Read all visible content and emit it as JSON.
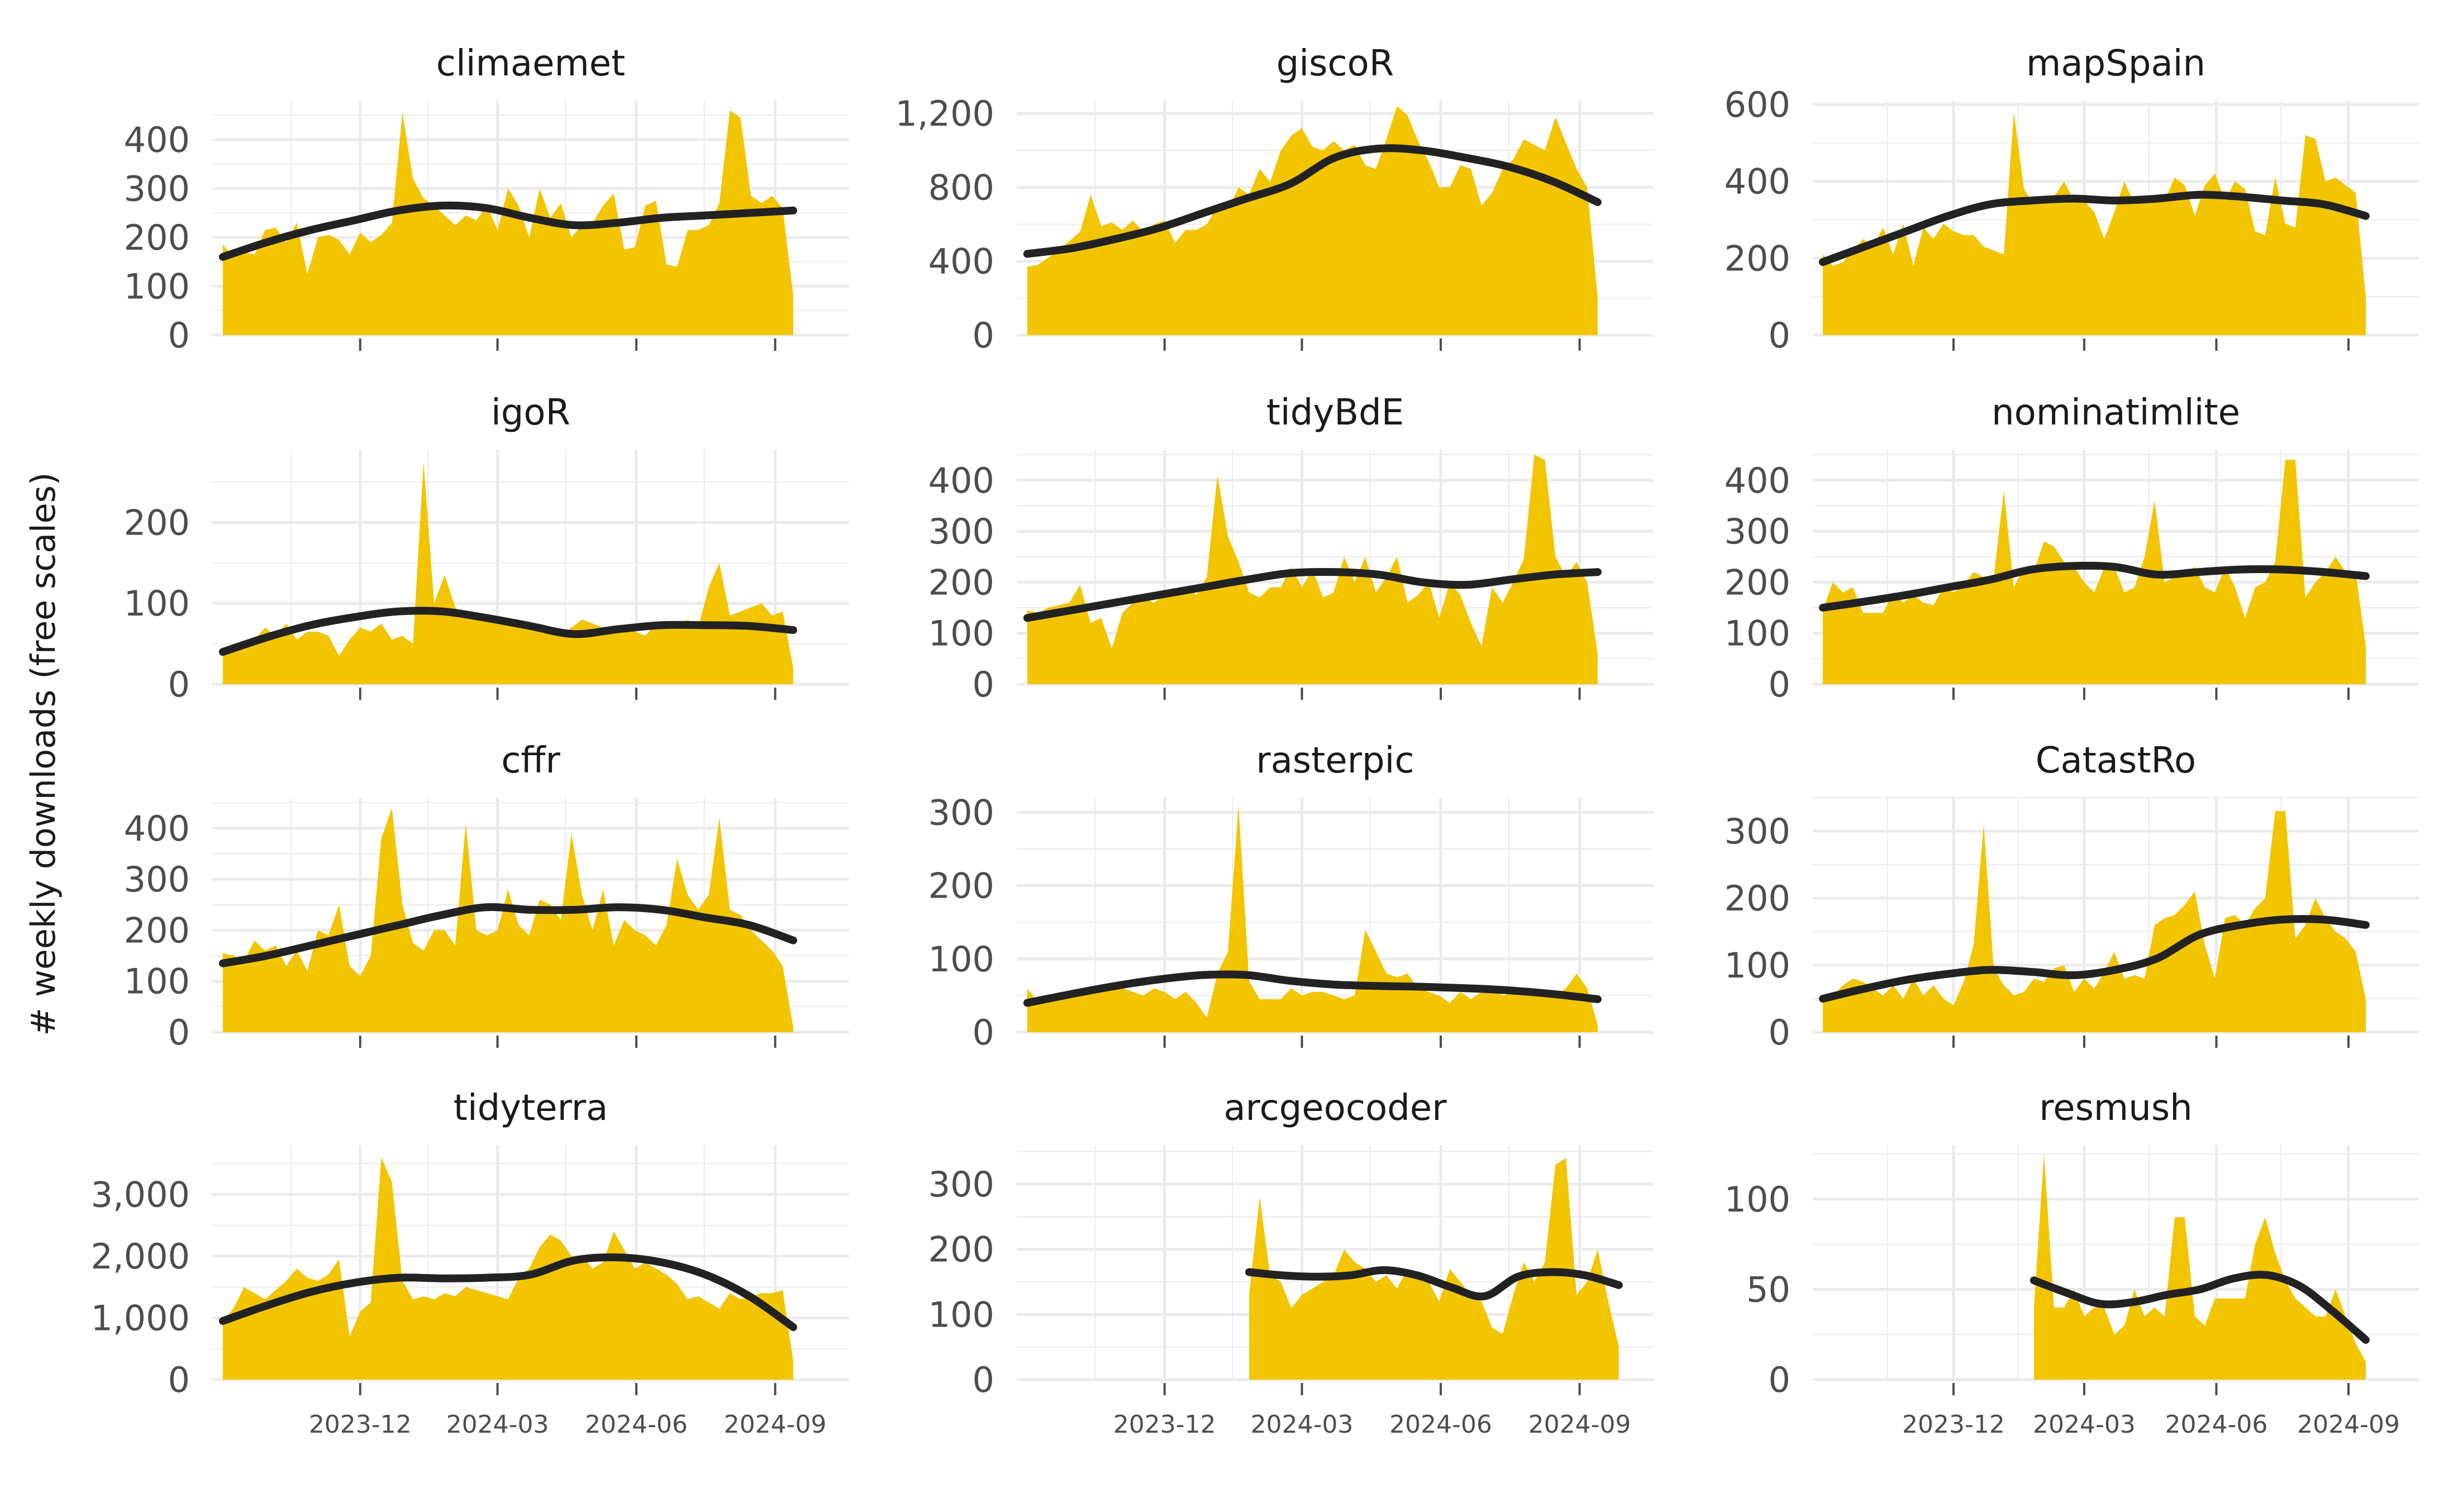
{
  "chart_data": {
    "type": "area",
    "ylabel": "# weekly downloads (free scales)",
    "xlabel": "",
    "x_tick_labels": [
      "2023-12",
      "2024-03",
      "2024-06",
      "2024-09"
    ],
    "x_tick_dates": [
      "2023-12-01",
      "2024-03-01",
      "2024-06-01",
      "2024-09-01"
    ],
    "x_range": [
      "2023-08-25",
      "2024-10-20"
    ],
    "grid": true,
    "legend": "none",
    "colors": {
      "area": "#F2C500",
      "trend": "#222222",
      "grid": "#EBEBEB",
      "tick_text": "#4D4D4D",
      "title_text": "#1A1A1A"
    },
    "panels": [
      {
        "title": "climaemet",
        "ylim": [
          0,
          480
        ],
        "yticks": [
          0,
          100,
          200,
          300,
          400
        ],
        "ytick_labels": [
          "0",
          "100",
          "200",
          "300",
          "400"
        ],
        "start": "2023-09-01",
        "values": [
          185,
          160,
          170,
          165,
          215,
          220,
          190,
          230,
          125,
          200,
          205,
          195,
          165,
          210,
          190,
          205,
          230,
          455,
          320,
          280,
          265,
          245,
          225,
          245,
          235,
          265,
          215,
          300,
          265,
          200,
          300,
          240,
          270,
          200,
          225,
          230,
          265,
          290,
          175,
          180,
          265,
          275,
          145,
          140,
          215,
          215,
          225,
          270,
          460,
          445,
          285,
          270,
          285,
          260,
          80
        ],
        "trend": [
          160,
          190,
          215,
          235,
          255,
          265,
          260,
          240,
          225,
          230,
          240,
          245,
          250,
          255
        ]
      },
      {
        "title": "giscoR",
        "ylim": [
          0,
          1270
        ],
        "yticks": [
          0,
          400,
          800,
          1200
        ],
        "ytick_labels": [
          "0",
          "400",
          "800",
          "1,200"
        ],
        "start": "2023-09-01",
        "values": [
          370,
          380,
          420,
          460,
          510,
          560,
          760,
          590,
          610,
          570,
          620,
          560,
          600,
          620,
          500,
          570,
          570,
          600,
          700,
          680,
          800,
          760,
          900,
          830,
          1000,
          1080,
          1120,
          1020,
          1000,
          1050,
          1000,
          1030,
          920,
          900,
          1060,
          1240,
          1190,
          1050,
          940,
          800,
          800,
          920,
          900,
          700,
          770,
          900,
          950,
          1060,
          1030,
          1000,
          1180,
          1040,
          900,
          800,
          200
        ],
        "trend": [
          440,
          470,
          520,
          580,
          660,
          740,
          820,
          960,
          1010,
          1000,
          960,
          910,
          830,
          720
        ]
      },
      {
        "title": "mapSpain",
        "ylim": [
          0,
          610
        ],
        "yticks": [
          0,
          200,
          400,
          600
        ],
        "ytick_labels": [
          "0",
          "200",
          "400",
          "600"
        ],
        "start": "2023-09-01",
        "values": [
          210,
          180,
          190,
          220,
          250,
          230,
          280,
          210,
          290,
          180,
          280,
          250,
          290,
          270,
          260,
          260,
          230,
          220,
          210,
          580,
          380,
          340,
          360,
          360,
          400,
          350,
          350,
          320,
          250,
          320,
          400,
          340,
          350,
          350,
          350,
          410,
          390,
          310,
          390,
          420,
          350,
          400,
          380,
          270,
          260,
          410,
          290,
          280,
          520,
          510,
          400,
          410,
          390,
          370,
          100
        ],
        "trend": [
          190,
          230,
          270,
          310,
          340,
          350,
          355,
          350,
          355,
          365,
          360,
          350,
          340,
          310
        ]
      },
      {
        "title": "igoR",
        "ylim": [
          0,
          290
        ],
        "yticks": [
          0,
          100,
          200
        ],
        "ytick_labels": [
          "0",
          "100",
          "200"
        ],
        "start": "2023-09-01",
        "values": [
          45,
          40,
          50,
          55,
          70,
          60,
          75,
          55,
          65,
          65,
          60,
          35,
          55,
          70,
          65,
          75,
          55,
          60,
          50,
          275,
          100,
          135,
          95,
          85,
          80,
          80,
          75,
          75,
          80,
          70,
          75,
          70,
          60,
          70,
          80,
          75,
          70,
          70,
          70,
          65,
          60,
          75,
          75,
          70,
          80,
          70,
          120,
          150,
          85,
          90,
          95,
          100,
          85,
          90,
          20
        ],
        "trend": [
          40,
          58,
          73,
          83,
          90,
          90,
          82,
          72,
          62,
          68,
          73,
          73,
          72,
          67
        ]
      },
      {
        "title": "tidyBdE",
        "ylim": [
          0,
          460
        ],
        "yticks": [
          0,
          100,
          200,
          300,
          400
        ],
        "ytick_labels": [
          "0",
          "100",
          "200",
          "300",
          "400"
        ],
        "start": "2023-09-01",
        "values": [
          145,
          140,
          150,
          155,
          160,
          195,
          120,
          130,
          70,
          140,
          160,
          170,
          160,
          175,
          185,
          190,
          175,
          210,
          410,
          290,
          240,
          180,
          170,
          190,
          190,
          230,
          190,
          225,
          170,
          180,
          250,
          200,
          250,
          180,
          210,
          250,
          160,
          175,
          200,
          130,
          200,
          175,
          120,
          75,
          190,
          160,
          200,
          245,
          450,
          440,
          250,
          210,
          240,
          200,
          60
        ],
        "trend": [
          130,
          145,
          160,
          175,
          190,
          205,
          218,
          220,
          215,
          200,
          195,
          205,
          215,
          220
        ]
      },
      {
        "title": "nominatimlite",
        "ylim": [
          0,
          460
        ],
        "yticks": [
          0,
          100,
          200,
          300,
          400
        ],
        "ytick_labels": [
          "0",
          "100",
          "200",
          "300",
          "400"
        ],
        "start": "2023-09-01",
        "values": [
          145,
          200,
          180,
          190,
          140,
          140,
          140,
          180,
          160,
          175,
          160,
          155,
          190,
          180,
          195,
          220,
          210,
          210,
          380,
          190,
          230,
          220,
          280,
          270,
          240,
          230,
          200,
          180,
          230,
          230,
          180,
          190,
          250,
          360,
          200,
          210,
          220,
          230,
          190,
          180,
          230,
          190,
          130,
          190,
          200,
          240,
          440,
          440,
          170,
          200,
          220,
          250,
          220,
          220,
          75
        ],
        "trend": [
          150,
          162,
          175,
          190,
          205,
          225,
          232,
          230,
          215,
          220,
          225,
          225,
          220,
          212
        ]
      },
      {
        "title": "cffr",
        "ylim": [
          0,
          460
        ],
        "yticks": [
          0,
          100,
          200,
          300,
          400
        ],
        "ytick_labels": [
          "0",
          "100",
          "200",
          "300",
          "400"
        ],
        "start": "2023-09-01",
        "values": [
          155,
          150,
          140,
          180,
          160,
          170,
          130,
          160,
          120,
          200,
          190,
          250,
          130,
          110,
          150,
          380,
          440,
          250,
          175,
          160,
          200,
          200,
          170,
          410,
          200,
          190,
          200,
          280,
          210,
          190,
          260,
          250,
          220,
          390,
          270,
          200,
          280,
          170,
          220,
          200,
          190,
          170,
          210,
          340,
          270,
          240,
          270,
          420,
          240,
          230,
          200,
          180,
          160,
          130,
          10
        ],
        "trend": [
          135,
          150,
          170,
          190,
          210,
          230,
          245,
          240,
          240,
          245,
          240,
          225,
          210,
          180
        ]
      },
      {
        "title": "rasterpic",
        "ylim": [
          0,
          320
        ],
        "yticks": [
          0,
          100,
          200,
          300
        ],
        "ytick_labels": [
          "0",
          "100",
          "200",
          "300"
        ],
        "start": "2023-09-01",
        "values": [
          60,
          40,
          45,
          50,
          55,
          55,
          60,
          65,
          60,
          60,
          55,
          50,
          60,
          55,
          45,
          55,
          40,
          20,
          80,
          110,
          310,
          70,
          45,
          45,
          45,
          60,
          50,
          55,
          55,
          50,
          45,
          50,
          140,
          110,
          80,
          75,
          80,
          60,
          55,
          50,
          40,
          55,
          45,
          55,
          60,
          50,
          55,
          50,
          50,
          55,
          50,
          60,
          80,
          60,
          10
        ],
        "trend": [
          40,
          52,
          63,
          72,
          78,
          78,
          70,
          65,
          63,
          62,
          60,
          57,
          52,
          45
        ]
      },
      {
        "title": "CatastRo",
        "ylim": [
          0,
          350
        ],
        "yticks": [
          0,
          100,
          200,
          300
        ],
        "ytick_labels": [
          "0",
          "100",
          "200",
          "300"
        ],
        "start": "2023-09-01",
        "values": [
          45,
          55,
          70,
          80,
          75,
          65,
          55,
          70,
          50,
          80,
          55,
          70,
          50,
          40,
          75,
          130,
          310,
          95,
          70,
          55,
          60,
          80,
          75,
          95,
          100,
          60,
          80,
          65,
          90,
          120,
          80,
          85,
          80,
          160,
          170,
          175,
          190,
          210,
          130,
          80,
          170,
          175,
          160,
          185,
          200,
          330,
          330,
          140,
          160,
          200,
          170,
          150,
          140,
          120,
          50
        ],
        "trend": [
          50,
          65,
          78,
          87,
          93,
          90,
          85,
          93,
          110,
          145,
          160,
          168,
          168,
          160
        ]
      },
      {
        "title": "tidyterra",
        "ylim": [
          0,
          3800
        ],
        "yticks": [
          0,
          1000,
          2000,
          3000
        ],
        "ytick_labels": [
          "0",
          "1,000",
          "2,000",
          "3,000"
        ],
        "start": "2023-09-01",
        "values": [
          950,
          1150,
          1500,
          1400,
          1300,
          1450,
          1600,
          1800,
          1650,
          1600,
          1700,
          1950,
          700,
          1100,
          1250,
          3600,
          3200,
          1600,
          1300,
          1350,
          1300,
          1400,
          1350,
          1500,
          1450,
          1400,
          1350,
          1300,
          1650,
          1800,
          2150,
          2350,
          2250,
          2000,
          2000,
          1800,
          1900,
          2400,
          2100,
          1800,
          1900,
          1800,
          1700,
          1550,
          1300,
          1350,
          1250,
          1150,
          1400,
          1300,
          1350,
          1400,
          1400,
          1450,
          300
        ],
        "trend": [
          950,
          1200,
          1420,
          1570,
          1650,
          1640,
          1650,
          1700,
          1930,
          1980,
          1900,
          1700,
          1350,
          850
        ]
      },
      {
        "title": "arcgeocoder",
        "ylim": [
          0,
          360
        ],
        "yticks": [
          0,
          100,
          200,
          300
        ],
        "ytick_labels": [
          "0",
          "100",
          "200",
          "300"
        ],
        "start": "2024-01-26",
        "values": [
          130,
          280,
          160,
          150,
          110,
          130,
          140,
          150,
          160,
          200,
          180,
          170,
          150,
          160,
          140,
          170,
          160,
          150,
          120,
          170,
          150,
          130,
          120,
          80,
          70,
          130,
          180,
          150,
          180,
          330,
          340,
          130,
          150,
          200,
          120,
          50
        ],
        "trend": [
          165,
          160,
          158,
          160,
          168,
          160,
          142,
          128,
          158,
          165,
          160,
          145
        ]
      },
      {
        "title": "resmush",
        "ylim": [
          0,
          130
        ],
        "yticks": [
          0,
          50,
          100
        ],
        "ytick_labels": [
          "0",
          "50",
          "100"
        ],
        "start": "2024-01-26",
        "values": [
          40,
          125,
          40,
          40,
          50,
          35,
          40,
          40,
          25,
          30,
          50,
          35,
          40,
          35,
          90,
          90,
          35,
          30,
          45,
          45,
          45,
          45,
          75,
          90,
          70,
          55,
          45,
          40,
          35,
          35,
          50,
          35,
          20,
          10
        ],
        "trend": [
          55,
          48,
          42,
          43,
          47,
          50,
          56,
          58,
          52,
          38,
          22
        ]
      }
    ]
  }
}
